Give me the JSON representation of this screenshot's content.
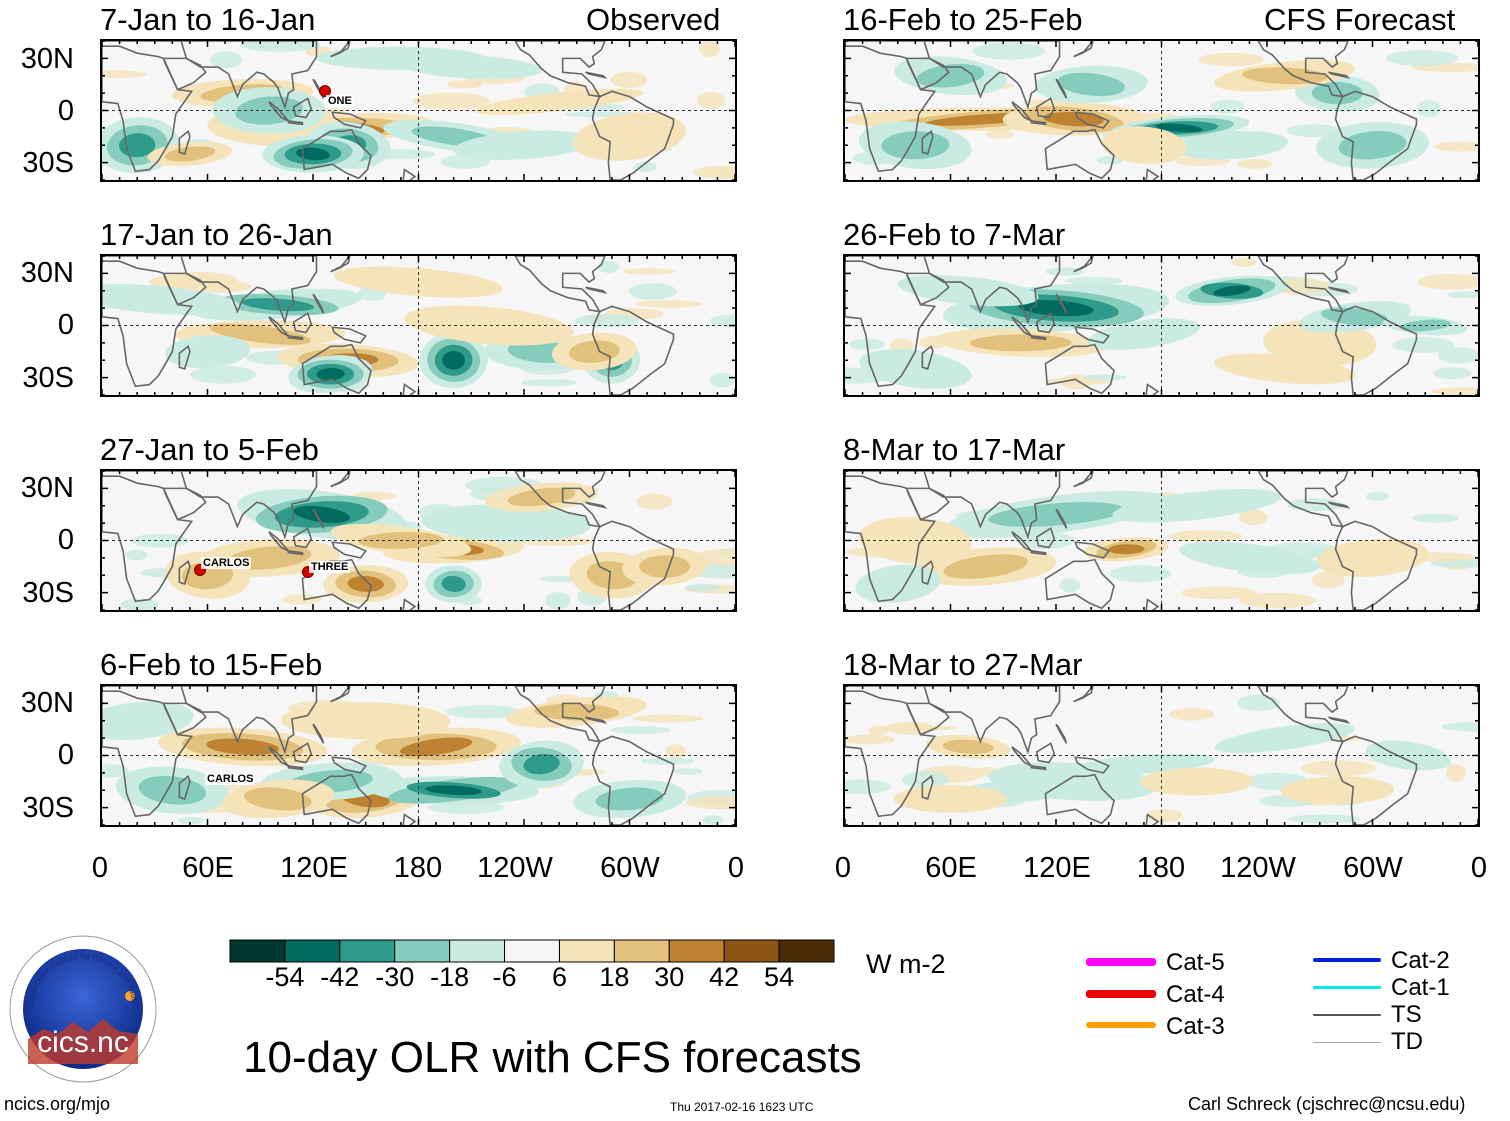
{
  "chart_data": {
    "type": "heatmap",
    "title": "10-day OLR with CFS forecasts",
    "units": "W m-2",
    "x_tick_labels": [
      "0",
      "60E",
      "120E",
      "180",
      "120W",
      "60W",
      "0"
    ],
    "y_tick_labels": [
      "30N",
      "0",
      "30S"
    ],
    "colorbar": {
      "labels": [
        "-54",
        "-42",
        "-30",
        "-18",
        "-6",
        "6",
        "18",
        "30",
        "42",
        "54"
      ],
      "colors": [
        "#00382e",
        "#006b5e",
        "#2e9a8a",
        "#85ccbd",
        "#c9ebe2",
        "#f6f6f6",
        "#f5e3b9",
        "#e2c17c",
        "#bd8232",
        "#8c5512",
        "#4c2c08"
      ]
    },
    "panels": [
      {
        "title": "7-Jan to 16-Jan",
        "subtitle": "Observed",
        "storms": [
          {
            "name": "ONE",
            "lon": 125,
            "lat": 10,
            "color": "#d40000"
          }
        ]
      },
      {
        "title": "17-Jan to 26-Jan",
        "subtitle": "",
        "storms": []
      },
      {
        "title": "27-Jan to 5-Feb",
        "subtitle": "",
        "storms": [
          {
            "name": "CARLOS",
            "lon": 55,
            "lat": -18,
            "color": "#d40000"
          },
          {
            "name": "THREE",
            "lon": 118,
            "lat": -18,
            "color": "#d40000"
          }
        ]
      },
      {
        "title": "6-Feb to 15-Feb",
        "subtitle": "",
        "storms": [
          {
            "name": "CARLOS",
            "lon": 60,
            "lat": -22,
            "color": ""
          }
        ]
      },
      {
        "title": "16-Feb to 25-Feb",
        "subtitle": "CFS Forecast",
        "storms": []
      },
      {
        "title": "26-Feb to 7-Mar",
        "subtitle": "",
        "storms": []
      },
      {
        "title": "8-Mar to 17-Mar",
        "subtitle": "",
        "storms": []
      },
      {
        "title": "18-Mar to 27-Mar",
        "subtitle": "",
        "storms": []
      }
    ],
    "legend": [
      {
        "label": "Cat-5",
        "color": "#ff00ff"
      },
      {
        "label": "Cat-4",
        "color": "#ee0000"
      },
      {
        "label": "Cat-3",
        "color": "#ffa000"
      },
      {
        "label": "Cat-2",
        "color": "#0020e0"
      },
      {
        "label": "Cat-1",
        "color": "#00e8ee"
      },
      {
        "label": "TS",
        "color": "#555555"
      },
      {
        "label": "TD",
        "color": "#aaaaaa"
      }
    ]
  },
  "footer": {
    "logo_text": "cics.nc",
    "logo_ring_text": "Cooperative Institute for Climate and Satellites",
    "left": "ncics.org/mjo",
    "center": "Thu 2017-02-16 1623 UTC",
    "right": "Carl Schreck (cjschrec@ncsu.edu)"
  }
}
